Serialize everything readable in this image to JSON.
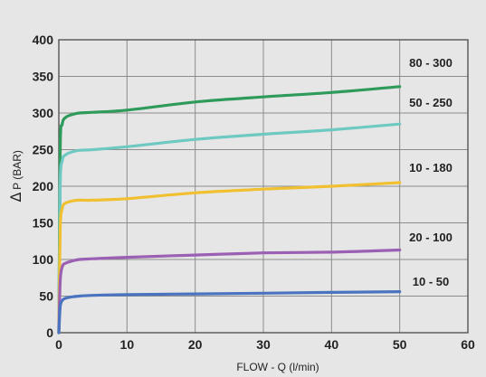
{
  "chart_data": {
    "type": "line",
    "xlabel": "FLOW - Q (l/min)",
    "ylabel_symbol": "Δ",
    "ylabel": "P (BAR)",
    "xlim": [
      0,
      60
    ],
    "ylim": [
      0,
      400
    ],
    "xticks": [
      "0",
      "10",
      "20",
      "30",
      "40",
      "50",
      "60"
    ],
    "yticks": [
      "0",
      "50",
      "100",
      "150",
      "200",
      "250",
      "300",
      "350",
      "400"
    ],
    "grid": true,
    "series": [
      {
        "name": "80 - 300",
        "color": "#2e9b5b",
        "x": [
          0,
          0.2,
          0.5,
          1,
          2,
          3,
          5,
          10,
          20,
          30,
          40,
          50
        ],
        "y": [
          0,
          250,
          285,
          294,
          298,
          300,
          301,
          304,
          315,
          322,
          328,
          336
        ]
      },
      {
        "name": "50 - 250",
        "color": "#6ec9c2",
        "x": [
          0,
          0.2,
          0.5,
          1,
          2,
          3,
          5,
          10,
          20,
          30,
          40,
          50
        ],
        "y": [
          0,
          200,
          235,
          243,
          247,
          249,
          250,
          254,
          264,
          271,
          277,
          285
        ]
      },
      {
        "name": "10 - 180",
        "color": "#f0c030",
        "x": [
          0,
          0.2,
          0.5,
          1,
          2,
          3,
          5,
          10,
          20,
          30,
          40,
          50
        ],
        "y": [
          0,
          140,
          170,
          177,
          180,
          181,
          181,
          183,
          191,
          196,
          200,
          205
        ]
      },
      {
        "name": "20 - 100",
        "color": "#9b5fb3",
        "x": [
          0,
          0.2,
          0.5,
          1,
          2,
          3,
          5,
          10,
          20,
          30,
          40,
          50
        ],
        "y": [
          0,
          70,
          90,
          95,
          98,
          100,
          101,
          103,
          106,
          109,
          110,
          113
        ]
      },
      {
        "name": "10 - 50",
        "color": "#4a73c0",
        "x": [
          0,
          0.2,
          0.5,
          1,
          2,
          3,
          5,
          10,
          20,
          30,
          40,
          50
        ],
        "y": [
          0,
          35,
          44,
          47,
          49,
          50,
          51,
          52,
          53,
          54,
          55,
          56
        ]
      }
    ]
  }
}
